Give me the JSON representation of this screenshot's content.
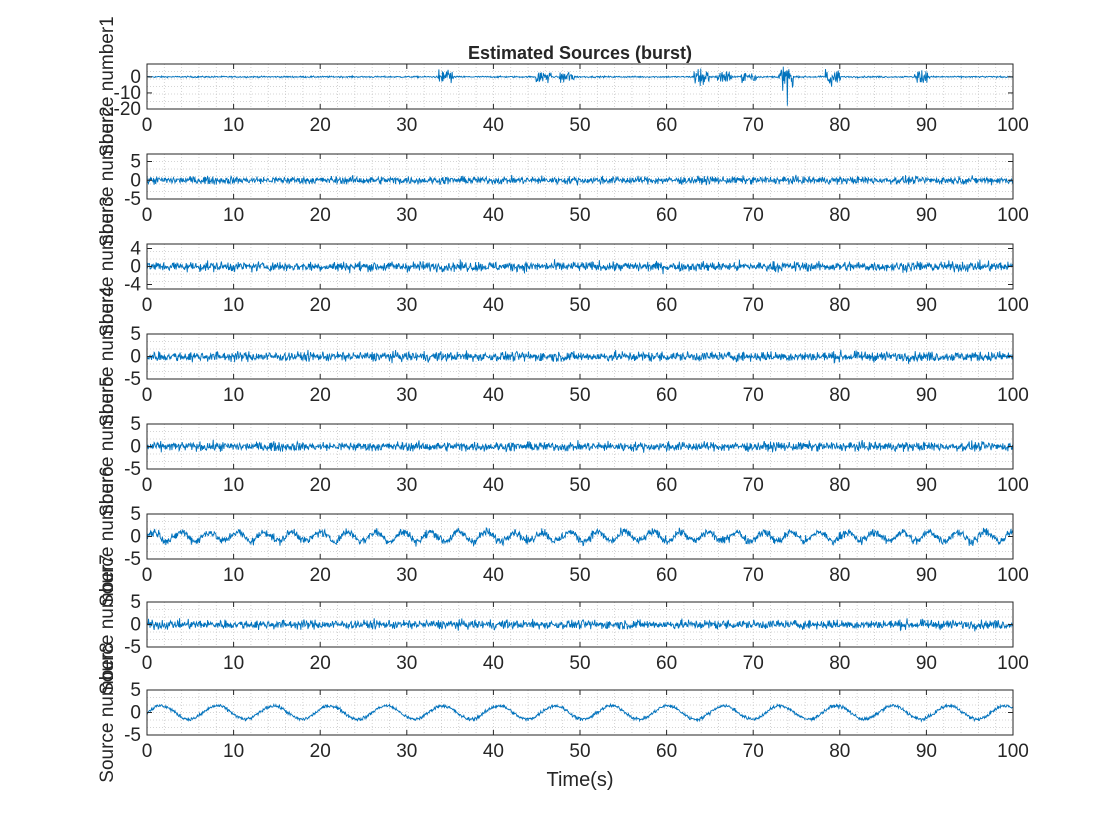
{
  "figure": {
    "title": "Estimated Sources (burst)",
    "xlabel": "Time(s)"
  },
  "colors": {
    "signal": "#0072BD",
    "axes": "#262626",
    "grid": "#c8c8c8",
    "background": "#ffffff"
  },
  "chart_data": [
    {
      "type": "line",
      "ylabel": "Source number1",
      "xlim": [
        0,
        100
      ],
      "ylim": [
        -20,
        8
      ],
      "xticks": [
        0,
        10,
        20,
        30,
        40,
        50,
        60,
        70,
        80,
        90,
        100
      ],
      "yticks": [
        -20,
        -10,
        0
      ],
      "grid": true,
      "series": [
        {
          "kind": "noise",
          "baseline": 0,
          "amplitude": 0.6,
          "bursts": [
            {
              "t": 34.5,
              "amp": 5
            },
            {
              "t": 45.8,
              "amp": 4
            },
            {
              "t": 48.5,
              "amp": 4
            },
            {
              "t": 64.0,
              "amp": 6
            },
            {
              "t": 66.7,
              "amp": 4
            },
            {
              "t": 69.5,
              "amp": 4
            },
            {
              "t": 73.8,
              "amp": 7,
              "min": -18
            },
            {
              "t": 79.2,
              "amp": 5
            },
            {
              "t": 89.5,
              "amp": 4
            }
          ]
        }
      ]
    },
    {
      "type": "line",
      "ylabel": "Source number2",
      "xlim": [
        0,
        100
      ],
      "ylim": [
        -5,
        7
      ],
      "xticks": [
        0,
        10,
        20,
        30,
        40,
        50,
        60,
        70,
        80,
        90,
        100
      ],
      "yticks": [
        -5,
        0,
        5
      ],
      "grid": true,
      "series": [
        {
          "kind": "noise",
          "baseline": 0,
          "amplitude": 1.3
        }
      ]
    },
    {
      "type": "line",
      "ylabel": "Source number3",
      "xlim": [
        0,
        100
      ],
      "ylim": [
        -5,
        5
      ],
      "xticks": [
        0,
        10,
        20,
        30,
        40,
        50,
        60,
        70,
        80,
        90,
        100
      ],
      "yticks": [
        -4,
        0,
        4
      ],
      "grid": true,
      "series": [
        {
          "kind": "noise",
          "baseline": 0,
          "amplitude": 1.4
        }
      ]
    },
    {
      "type": "line",
      "ylabel": "Source number4",
      "xlim": [
        0,
        100
      ],
      "ylim": [
        -5,
        5
      ],
      "xticks": [
        0,
        10,
        20,
        30,
        40,
        50,
        60,
        70,
        80,
        90,
        100
      ],
      "yticks": [
        -5,
        0,
        5
      ],
      "grid": true,
      "series": [
        {
          "kind": "noise",
          "baseline": 0,
          "amplitude": 1.4
        }
      ]
    },
    {
      "type": "line",
      "ylabel": "Source number5",
      "xlim": [
        0,
        100
      ],
      "ylim": [
        -5,
        5
      ],
      "xticks": [
        0,
        10,
        20,
        30,
        40,
        50,
        60,
        70,
        80,
        90,
        100
      ],
      "yticks": [
        -5,
        0,
        5
      ],
      "grid": true,
      "series": [
        {
          "kind": "noise",
          "baseline": 0,
          "amplitude": 1.3
        }
      ]
    },
    {
      "type": "line",
      "ylabel": "Source number6",
      "xlim": [
        0,
        100
      ],
      "ylim": [
        -5,
        5
      ],
      "xticks": [
        0,
        10,
        20,
        30,
        40,
        50,
        60,
        70,
        80,
        90,
        100
      ],
      "yticks": [
        -5,
        0,
        5
      ],
      "grid": true,
      "series": [
        {
          "kind": "oscillation",
          "baseline": 0,
          "amplitude": 1.2,
          "osc_amp": 1.0,
          "osc_period": 3.2
        }
      ]
    },
    {
      "type": "line",
      "ylabel": "Source number7",
      "xlim": [
        0,
        100
      ],
      "ylim": [
        -5,
        5
      ],
      "xticks": [
        0,
        10,
        20,
        30,
        40,
        50,
        60,
        70,
        80,
        90,
        100
      ],
      "yticks": [
        -5,
        0,
        5
      ],
      "grid": true,
      "series": [
        {
          "kind": "noise",
          "baseline": 0,
          "amplitude": 1.3
        }
      ]
    },
    {
      "type": "line",
      "ylabel": "Source number8",
      "xlim": [
        0,
        100
      ],
      "ylim": [
        -5,
        5
      ],
      "xticks": [
        0,
        10,
        20,
        30,
        40,
        50,
        60,
        70,
        80,
        90,
        100
      ],
      "yticks": [
        -5,
        0,
        5
      ],
      "grid": true,
      "series": [
        {
          "kind": "oscillation",
          "baseline": 0,
          "amplitude": 0.5,
          "osc_amp": 1.5,
          "osc_period": 6.5
        }
      ]
    }
  ]
}
